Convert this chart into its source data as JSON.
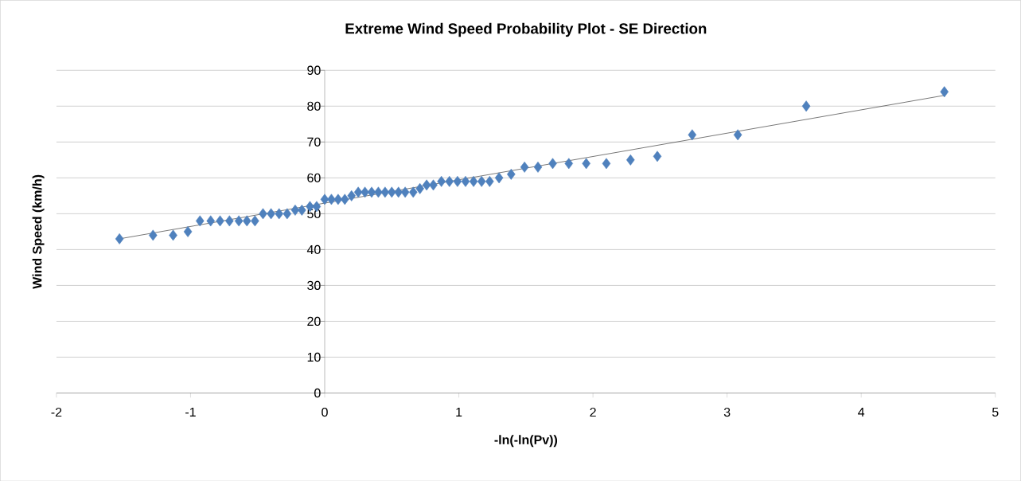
{
  "chart_data": {
    "type": "scatter",
    "title": "Extreme Wind Speed Probability Plot - SE Direction",
    "xlabel": "-ln(-ln(Pv))",
    "ylabel": "Wind Speed (km/h)",
    "xlim": [
      -2,
      5
    ],
    "xticks": [
      -2,
      -1,
      0,
      1,
      2,
      3,
      4,
      5
    ],
    "ylim": [
      0,
      90
    ],
    "yticks": [
      0,
      10,
      20,
      30,
      40,
      50,
      60,
      70,
      80,
      90
    ],
    "grid": "y",
    "marker": "diamond",
    "series": [
      {
        "color": "#4f81bd",
        "x": [
          -1.53,
          -1.28,
          -1.13,
          -1.02,
          -0.93,
          -0.85,
          -0.78,
          -0.71,
          -0.64,
          -0.58,
          -0.52,
          -0.46,
          -0.4,
          -0.34,
          -0.28,
          -0.22,
          -0.17,
          -0.11,
          -0.06,
          0.0,
          0.05,
          0.1,
          0.15,
          0.2,
          0.25,
          0.3,
          0.35,
          0.4,
          0.45,
          0.5,
          0.55,
          0.6,
          0.66,
          0.71,
          0.76,
          0.81,
          0.87,
          0.93,
          0.99,
          1.05,
          1.11,
          1.17,
          1.23,
          1.3,
          1.39,
          1.49,
          1.59,
          1.7,
          1.82,
          1.95,
          2.1,
          2.28,
          2.48,
          2.74,
          3.08,
          3.59,
          4.62
        ],
        "values": [
          43,
          44,
          44,
          45,
          48,
          48,
          48,
          48,
          48,
          48,
          48,
          50,
          50,
          50,
          50,
          51,
          51,
          52,
          52,
          54,
          54,
          54,
          54,
          55,
          56,
          56,
          56,
          56,
          56,
          56,
          56,
          56,
          56,
          57,
          58,
          58,
          59,
          59,
          59,
          59,
          59,
          59,
          59,
          60,
          61,
          63,
          63,
          64,
          64,
          64,
          64,
          65,
          66,
          72,
          72,
          80,
          84
        ]
      },
      {
        "type": "line",
        "marker": "none",
        "color": "#000000",
        "x": [
          -1.53,
          4.62
        ],
        "values": [
          43,
          83
        ]
      }
    ]
  }
}
